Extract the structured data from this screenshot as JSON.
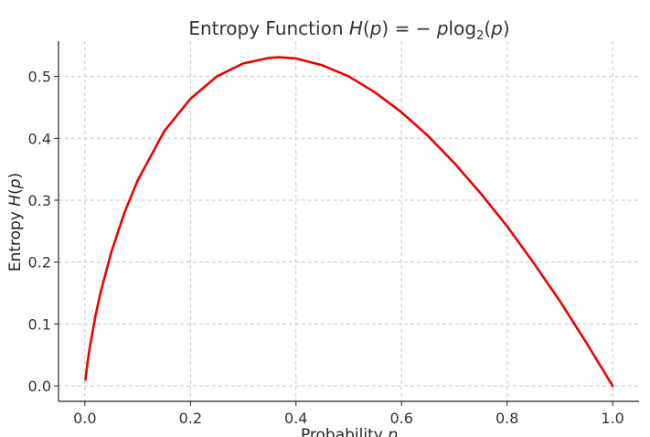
{
  "chart_data": {
    "type": "line",
    "title": "Entropy Function H(p) = − plog₂(p)",
    "title_parts": {
      "prefix": "Entropy Function ",
      "H": "H",
      "open_paren": "(",
      "p1": "p",
      "close_paren": ")",
      "equals": " = − ",
      "p2": "p",
      "log": "log",
      "sub": "2",
      "arg_open": "(",
      "p3": "p",
      "arg_close": ")"
    },
    "xlabel": "Probability p",
    "xlabel_parts": {
      "text": "Probability ",
      "var": "p"
    },
    "ylabel": "Entropy H(p)",
    "ylabel_parts": {
      "text": "Entropy ",
      "var": "H",
      "open": "(",
      "p": "p",
      "close": ")"
    },
    "xlim": [
      -0.05,
      1.05
    ],
    "ylim": [
      -0.025,
      0.557
    ],
    "xticks": [
      0.0,
      0.2,
      0.4,
      0.6,
      0.8,
      1.0
    ],
    "xtick_labels": [
      "0.0",
      "0.2",
      "0.4",
      "0.6",
      "0.8",
      "1.0"
    ],
    "yticks": [
      0.0,
      0.1,
      0.2,
      0.3,
      0.4,
      0.5
    ],
    "ytick_labels": [
      "0.0",
      "0.1",
      "0.2",
      "0.3",
      "0.4",
      "0.5"
    ],
    "grid": true,
    "series": [
      {
        "color": "#ee0000",
        "x": [
          0.001,
          0.005,
          0.01,
          0.02,
          0.03,
          0.05,
          0.075,
          0.1,
          0.15,
          0.2,
          0.25,
          0.3,
          0.35,
          0.3679,
          0.4,
          0.45,
          0.5,
          0.55,
          0.6,
          0.65,
          0.7,
          0.75,
          0.8,
          0.85,
          0.9,
          0.95,
          1.0
        ],
        "y": [
          0.01,
          0.038,
          0.066,
          0.113,
          0.152,
          0.216,
          0.28,
          0.332,
          0.411,
          0.464,
          0.5,
          0.521,
          0.53,
          0.531,
          0.529,
          0.518,
          0.5,
          0.474,
          0.442,
          0.404,
          0.36,
          0.311,
          0.258,
          0.199,
          0.137,
          0.07,
          0.0
        ]
      }
    ]
  }
}
